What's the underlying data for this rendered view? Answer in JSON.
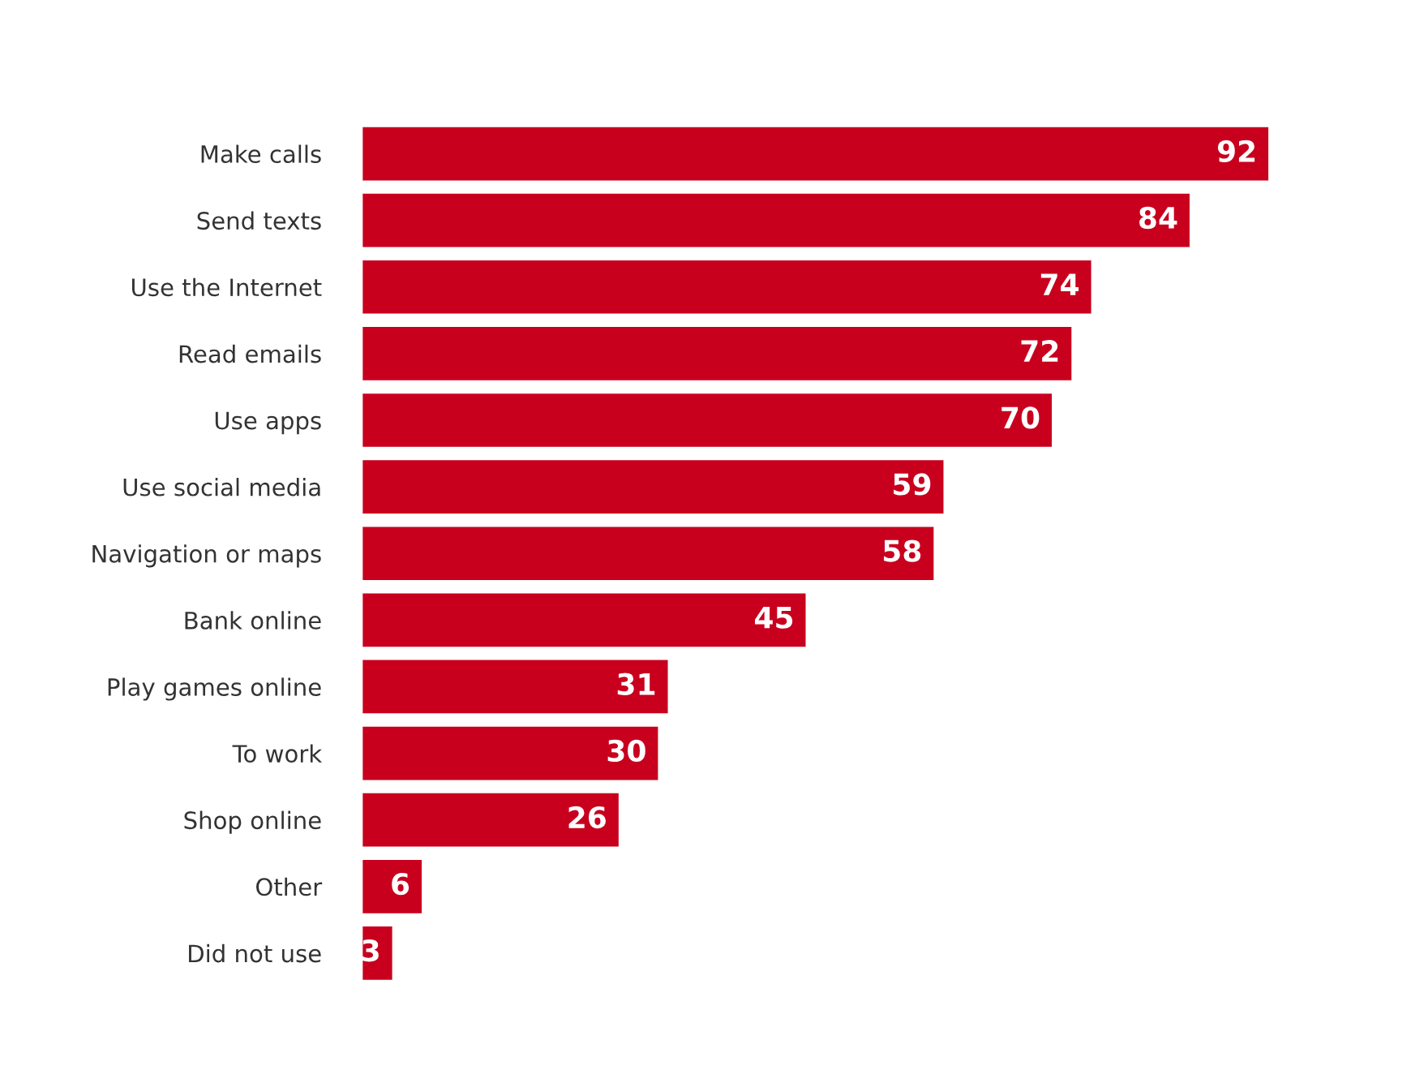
{
  "chart_data": {
    "type": "bar",
    "orientation": "horizontal",
    "categories": [
      "Make calls",
      "Send texts",
      "Use the Internet",
      "Read emails",
      "Use apps",
      "Use social media",
      "Navigation or maps",
      "Bank online",
      "Play games online",
      "To work",
      "Shop online",
      "Other",
      "Did not use"
    ],
    "values": [
      92,
      84,
      74,
      72,
      70,
      59,
      58,
      45,
      31,
      30,
      26,
      6,
      3
    ],
    "color": "#c8001e",
    "data_labels": true,
    "grid": false,
    "legend": false,
    "tick_labels": "y"
  }
}
